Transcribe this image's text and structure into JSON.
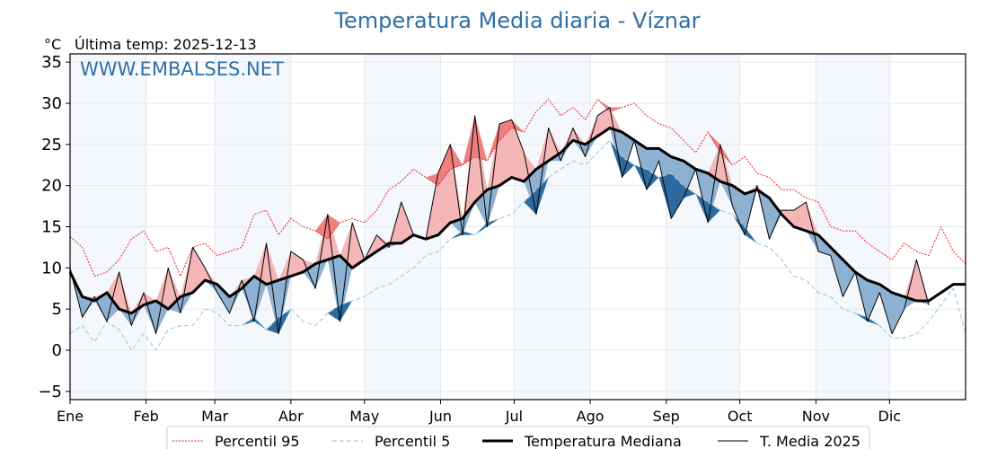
{
  "chart_data": {
    "type": "line",
    "title": "Temperatura Media diaria - Víznar",
    "subtitle": "Última temp: 2025-12-13",
    "ylabel": "°C",
    "watermark": "WWW.EMBALSES.NET",
    "ylim": [
      -6,
      36
    ],
    "yticks": [
      -5,
      0,
      5,
      10,
      15,
      20,
      25,
      30,
      35
    ],
    "ytick_labels": [
      "−5",
      "0",
      "5",
      "10",
      "15",
      "20",
      "25",
      "30",
      "35"
    ],
    "xlim": [
      0,
      365
    ],
    "month_ticks": [
      {
        "label": "Ene",
        "day": 0
      },
      {
        "label": "Feb",
        "day": 31
      },
      {
        "label": "Mar",
        "day": 59
      },
      {
        "label": "Abr",
        "day": 90
      },
      {
        "label": "May",
        "day": 120
      },
      {
        "label": "Jun",
        "day": 151
      },
      {
        "label": "Jul",
        "day": 181
      },
      {
        "label": "Ago",
        "day": 212
      },
      {
        "label": "Sep",
        "day": 243
      },
      {
        "label": "Oct",
        "day": 273
      },
      {
        "label": "Nov",
        "day": 304
      },
      {
        "label": "Dic",
        "day": 334
      }
    ],
    "grid": true,
    "legend_position": "bottom-center",
    "x_step_days": 5,
    "series": [
      {
        "name": "Percentil 95",
        "key": "p95",
        "color": "#e8222a",
        "style": "dotted",
        "values": [
          13.8,
          12.5,
          9.0,
          9.5,
          11.0,
          13.5,
          14.5,
          12.0,
          12.5,
          9.0,
          12.5,
          13.0,
          11.5,
          12.0,
          12.5,
          16.5,
          17.0,
          14.0,
          16.0,
          15.0,
          14.5,
          13.5,
          15.5,
          16.0,
          15.5,
          17.0,
          19.5,
          20.5,
          22.0,
          21.0,
          20.0,
          22.0,
          22.5,
          23.5,
          23.0,
          25.5,
          27.0,
          26.5,
          29.0,
          30.5,
          28.5,
          29.5,
          28.0,
          30.5,
          29.0,
          29.5,
          30.0,
          28.5,
          27.5,
          27.0,
          25.5,
          24.0,
          26.5,
          24.0,
          22.5,
          23.5,
          21.5,
          21.0,
          19.5,
          19.5,
          18.5,
          18.0,
          15.0,
          14.5,
          14.5,
          13.0,
          12.0,
          11.0,
          13.0,
          12.0,
          11.5,
          15.0,
          12.0,
          10.5
        ]
      },
      {
        "name": "Percentil 5",
        "key": "p5",
        "color": "#9fd0e3",
        "style": "dashed",
        "values": [
          2.0,
          3.0,
          1.0,
          3.5,
          2.5,
          0.0,
          2.0,
          0.0,
          2.5,
          3.0,
          3.0,
          5.0,
          4.5,
          3.0,
          3.0,
          4.0,
          2.5,
          4.0,
          5.0,
          3.5,
          3.0,
          4.5,
          5.5,
          6.0,
          6.5,
          7.5,
          8.0,
          9.0,
          10.0,
          11.5,
          12.0,
          13.5,
          14.5,
          14.0,
          15.5,
          16.0,
          16.5,
          18.0,
          19.5,
          21.0,
          22.0,
          23.0,
          22.5,
          24.0,
          25.5,
          23.5,
          22.5,
          22.0,
          21.0,
          21.5,
          20.0,
          19.0,
          18.0,
          17.0,
          16.5,
          15.0,
          13.0,
          12.5,
          11.0,
          9.0,
          8.5,
          7.0,
          6.5,
          5.0,
          4.5,
          4.0,
          3.0,
          1.5,
          1.5,
          2.0,
          3.5,
          5.5,
          7.5,
          2.0
        ]
      },
      {
        "name": "Temperatura Mediana",
        "key": "median",
        "color": "#000000",
        "style": "thick",
        "values": [
          9.5,
          6.5,
          6.0,
          7.0,
          5.0,
          4.5,
          5.5,
          6.0,
          5.0,
          6.5,
          7.0,
          8.5,
          8.0,
          6.5,
          7.5,
          9.0,
          8.0,
          8.5,
          9.0,
          9.5,
          10.5,
          11.0,
          11.5,
          10.0,
          11.0,
          12.0,
          13.0,
          13.0,
          14.0,
          13.5,
          14.0,
          15.5,
          16.0,
          18.0,
          19.5,
          20.0,
          21.0,
          20.5,
          22.0,
          23.0,
          24.0,
          25.5,
          25.0,
          26.0,
          27.0,
          26.5,
          25.5,
          24.5,
          24.5,
          23.5,
          23.0,
          22.0,
          21.5,
          20.5,
          20.0,
          19.0,
          19.5,
          18.5,
          16.5,
          15.0,
          14.5,
          14.0,
          12.5,
          11.0,
          9.5,
          8.5,
          8.0,
          7.0,
          6.5,
          6.0,
          6.0,
          7.0,
          8.0,
          8.0
        ]
      },
      {
        "name": "T. Media 2025",
        "key": "tmedia",
        "color": "#000000",
        "style": "thin",
        "values": [
          10.0,
          4.0,
          6.5,
          3.5,
          9.5,
          3.0,
          7.0,
          2.0,
          10.0,
          4.5,
          12.5,
          10.0,
          7.0,
          4.5,
          8.5,
          3.5,
          13.0,
          2.0,
          12.0,
          11.0,
          7.5,
          16.5,
          3.5,
          15.5,
          11.0,
          14.0,
          12.5,
          18.0,
          14.0,
          13.5,
          21.5,
          25.0,
          14.0,
          28.5,
          15.0,
          27.5,
          28.0,
          24.0,
          16.5,
          27.0,
          23.0,
          27.0,
          23.5,
          28.5,
          29.5,
          21.0,
          25.5,
          19.5,
          23.0,
          16.0,
          18.5,
          22.0,
          15.5,
          25.0,
          17.5,
          14.0,
          20.0,
          13.5,
          17.0,
          17.0,
          18.0,
          12.0,
          11.5,
          6.5,
          9.5,
          3.5,
          7.0,
          2.0,
          5.0,
          11.0,
          5.5,
          null,
          null,
          null
        ]
      }
    ],
    "fills": {
      "above_median": "#f4b6b6",
      "above_p95": "#f08080",
      "below_median": "#8eb1d2",
      "below_p5": "#2c6aa0"
    },
    "shaded_months_color": "#f4f8fc"
  },
  "legend": {
    "items": [
      {
        "label": "Percentil 95"
      },
      {
        "label": "Percentil 5"
      },
      {
        "label": "Temperatura Mediana"
      },
      {
        "label": "T. Media 2025"
      }
    ]
  }
}
